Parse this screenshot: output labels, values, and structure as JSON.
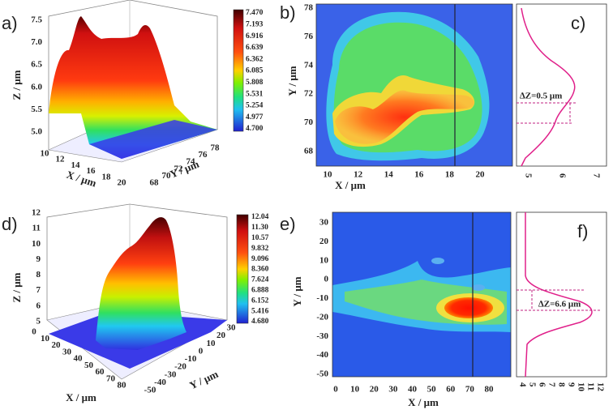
{
  "panels": [
    {
      "label": "a)",
      "z_axis_label": "Z / μm",
      "x_axis_label": "X / μm",
      "y_axis_label": "Y / μm",
      "z_ticks": [
        "5.0",
        "5.5",
        "6.0",
        "6.5",
        "7.0",
        "7.5"
      ],
      "x_ticks": [
        "10",
        "12",
        "14",
        "16",
        "18",
        "20"
      ],
      "y_ticks": [
        "68",
        "70",
        "72",
        "74",
        "76",
        "78"
      ],
      "colorbar_ticks": [
        "7.470",
        "7.193",
        "6.916",
        "6.639",
        "6.362",
        "6.085",
        "5.808",
        "5.531",
        "5.254",
        "4.977",
        "4.700"
      ]
    },
    {
      "label": "b)",
      "x_axis_label": "X / μm",
      "y_axis_label": "Y / μm",
      "x_ticks": [
        "10",
        "12",
        "14",
        "16",
        "18",
        "20"
      ],
      "y_ticks": [
        "68",
        "70",
        "72",
        "74",
        "76",
        "78"
      ]
    },
    {
      "label": "c)",
      "annotation": "∆Z=0.5 μm",
      "x_ticks": [
        "5",
        "6",
        "7"
      ]
    },
    {
      "label": "d)",
      "z_axis_label": "Z / μm",
      "x_axis_label": "X / μm",
      "y_axis_label": "Y / μm",
      "z_ticks": [
        "5",
        "6",
        "7",
        "8",
        "9",
        "10",
        "11",
        "12"
      ],
      "x_ticks": [
        "0",
        "10",
        "20",
        "30",
        "40",
        "50",
        "60",
        "70",
        "80"
      ],
      "y_ticks": [
        "-50",
        "-40",
        "-30",
        "-20",
        "-10",
        "0",
        "10",
        "20",
        "30"
      ],
      "colorbar_ticks": [
        "12.04",
        "11.30",
        "10.57",
        "9.832",
        "9.096",
        "8.360",
        "7.624",
        "6.888",
        "6.152",
        "5.416",
        "4.680"
      ]
    },
    {
      "label": "e)",
      "x_axis_label": "X / μm",
      "y_axis_label": "Y / μm",
      "x_ticks": [
        "0",
        "10",
        "20",
        "30",
        "40",
        "50",
        "60",
        "70",
        "80"
      ],
      "y_ticks": [
        "30",
        "20",
        "10",
        "0",
        "-10",
        "-20",
        "-30",
        "-40",
        "-50"
      ]
    },
    {
      "label": "f)",
      "annotation": "∆Z=6.6 μm",
      "x_ticks": [
        "4",
        "5",
        "6",
        "7",
        "8",
        "9",
        "10",
        "11",
        "12"
      ]
    }
  ]
}
